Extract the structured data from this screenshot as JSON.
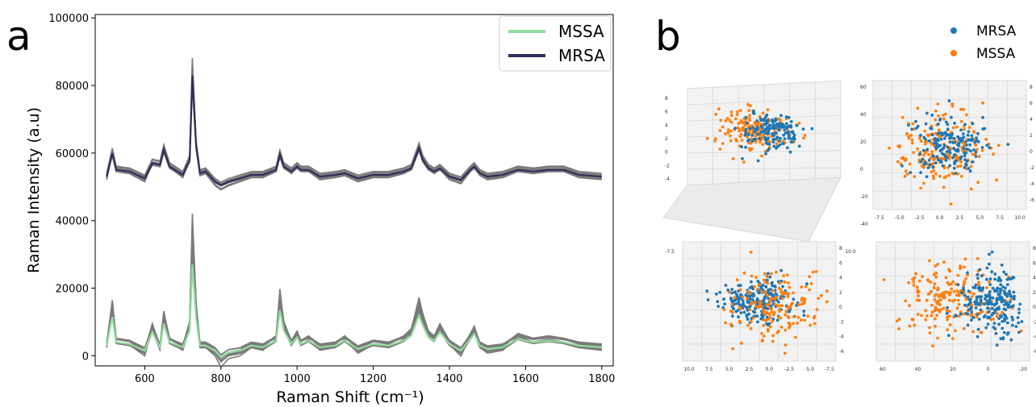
{
  "figure": {
    "panel_a_label": "a",
    "panel_b_label": "b"
  },
  "colors": {
    "mssa_line": "#90dc9c",
    "mrsa_line": "#2e2f5c",
    "replicate_gray": "#7a7a7a",
    "mrsa_points": "#1f77b4",
    "mssa_points": "#ff7f0e",
    "pane_background": "#f2f2f2",
    "pane_grid": "#d9d9d9"
  },
  "chart_data": [
    {
      "type": "line",
      "panel": "a",
      "title": "",
      "xlabel": "Raman Shift (cm⁻¹)",
      "ylabel": "Raman Intensity (a.u)",
      "xlim": [
        470,
        1830
      ],
      "ylim": [
        -3000,
        101000
      ],
      "xticks": [
        600,
        800,
        1000,
        1200,
        1400,
        1600,
        1800
      ],
      "yticks": [
        0,
        20000,
        40000,
        60000,
        80000,
        100000
      ],
      "legend_placement": "top-right",
      "grid": false,
      "replicate_color_note": "gray replicate spectra drawn behind each mean spectrum",
      "x": [
        500,
        515,
        525,
        560,
        600,
        620,
        640,
        650,
        665,
        700,
        718,
        725,
        735,
        745,
        760,
        785,
        800,
        820,
        850,
        880,
        910,
        945,
        955,
        965,
        985,
        1000,
        1010,
        1030,
        1060,
        1100,
        1125,
        1160,
        1200,
        1240,
        1280,
        1300,
        1320,
        1330,
        1345,
        1360,
        1375,
        1400,
        1430,
        1455,
        1465,
        1480,
        1500,
        1540,
        1580,
        1620,
        1660,
        1700,
        1740,
        1800
      ],
      "series": [
        {
          "name": "MSSA",
          "values": [
            3000,
            11500,
            4000,
            3500,
            1500,
            7000,
            2500,
            9500,
            4000,
            2500,
            7500,
            27000,
            11000,
            3000,
            3000,
            1500,
            -500,
            1000,
            1500,
            3000,
            2500,
            4500,
            13500,
            7500,
            3500,
            5500,
            3500,
            4500,
            2500,
            3000,
            4500,
            2000,
            3500,
            3000,
            4500,
            6000,
            12000,
            9000,
            5500,
            4500,
            7000,
            3500,
            1500,
            5000,
            6500,
            3000,
            2000,
            2500,
            5000,
            4000,
            4500,
            4000,
            3000,
            2500
          ]
        },
        {
          "name": "MRSA",
          "values": [
            53000,
            60000,
            55000,
            54500,
            52500,
            57000,
            56500,
            61000,
            56000,
            53500,
            58000,
            83000,
            62000,
            54000,
            54500,
            51500,
            50500,
            51500,
            52500,
            53500,
            53500,
            55000,
            59500,
            56000,
            54500,
            56000,
            55000,
            55000,
            53000,
            53500,
            54000,
            52500,
            53500,
            53500,
            54500,
            55500,
            61500,
            58000,
            55500,
            54500,
            55500,
            53000,
            52000,
            55000,
            56000,
            54000,
            53000,
            53500,
            55000,
            54500,
            55000,
            55000,
            53500,
            53000
          ]
        }
      ]
    },
    {
      "type": "scatter",
      "panel": "b",
      "title": "",
      "legend": [
        "MRSA",
        "MSSA"
      ],
      "legend_placement": "top-right",
      "views": [
        {
          "name": "perspective view",
          "xticks": [
            "-7.5",
            "-5.0",
            "-2.5",
            "0.0",
            "2.5",
            "5.0",
            "7.5",
            "10.0"
          ],
          "yticks": [
            "60",
            "40",
            "20",
            "0",
            "-20",
            "-40"
          ],
          "zticks": [
            "8",
            "6",
            "4",
            "2",
            "0",
            "-2",
            "-4"
          ],
          "clusters": [
            {
              "series": "MSSA",
              "cx": -0.4,
              "cy": 2.5,
              "spread": 2.6,
              "n": 170
            },
            {
              "series": "MRSA",
              "cx": 2.0,
              "cy": 1.8,
              "spread": 2.2,
              "n": 150
            }
          ]
        },
        {
          "name": "x-z view",
          "xticks": [
            "-7.5",
            "-5.0",
            "-2.5",
            "0.0",
            "2.5",
            "5.0",
            "7.5",
            "10.0"
          ],
          "yticks": [
            "8",
            "6",
            "4",
            "2",
            "0",
            "-2",
            "-4",
            "-6"
          ],
          "clusters": [
            {
              "series": "MSSA",
              "cx": -0.3,
              "cy": 0.5,
              "spread": 3.2,
              "n": 210
            },
            {
              "series": "MRSA",
              "cx": 0.8,
              "cy": 1.2,
              "spread": 2.6,
              "n": 170
            }
          ]
        },
        {
          "name": "mirrored x-z view",
          "xticks": [
            "10.0",
            "7.5",
            "5.0",
            "2.5",
            "0.0",
            "-2.5",
            "-5.0",
            "-7.5"
          ],
          "yticks": [
            "8",
            "6",
            "4",
            "2",
            "0",
            "-2",
            "-4",
            "-6"
          ],
          "clusters": [
            {
              "series": "MRSA",
              "cx": 1.2,
              "cy": 1.0,
              "spread": 2.4,
              "n": 220
            },
            {
              "series": "MSSA",
              "cx": -1.0,
              "cy": 0.2,
              "spread": 3.4,
              "n": 170
            }
          ]
        },
        {
          "name": "y-z view",
          "xticks": [
            "60",
            "40",
            "20",
            "0",
            "-20"
          ],
          "yticks": [
            "8",
            "6",
            "4",
            "2",
            "0",
            "-2",
            "-4",
            "-6"
          ],
          "clusters": [
            {
              "series": "MSSA",
              "cx": 20,
              "cy": 1.5,
              "spread": 18,
              "n": 200
            },
            {
              "series": "MRSA",
              "cx": -8,
              "cy": 1.0,
              "spread": 12,
              "n": 220
            }
          ]
        }
      ]
    }
  ]
}
